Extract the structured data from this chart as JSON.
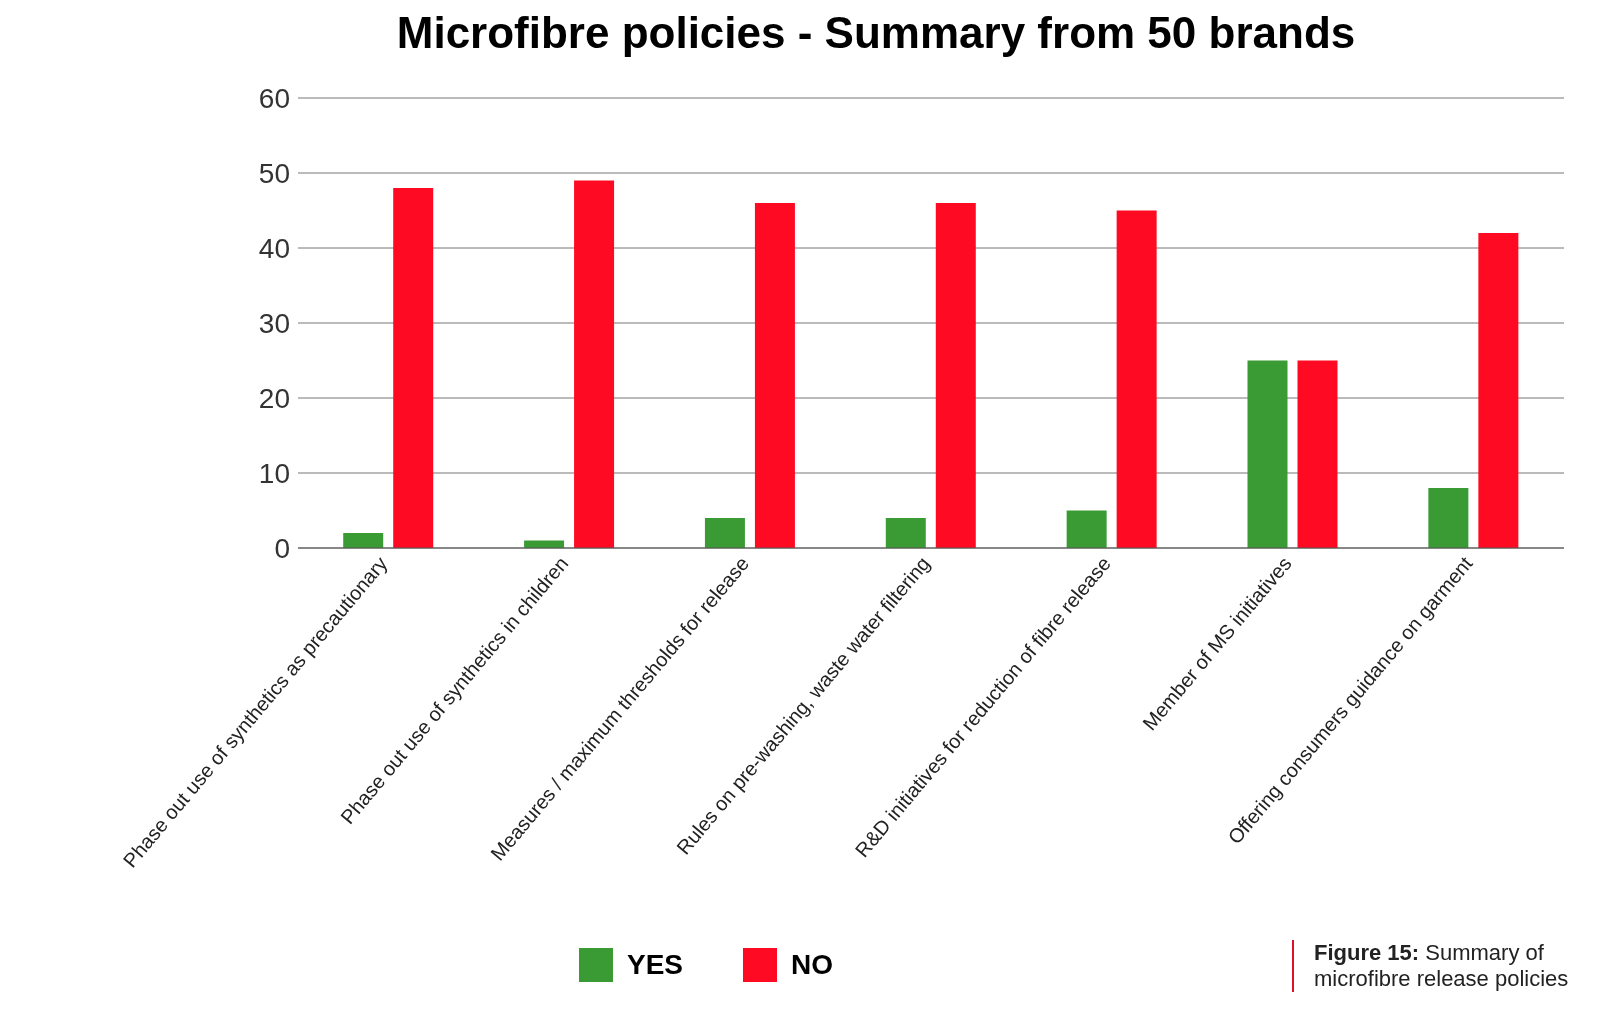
{
  "chart_data": {
    "type": "bar",
    "title": "Microfibre policies - Summary from 50 brands",
    "categories": [
      "Phase out use of synthetics as precautionary",
      "Phase out use of synthetics in children",
      "Measures / maximum thresholds for release",
      "Rules on pre-washing, waste water filtering",
      "R&D initiatives for reduction of fibre release",
      "Member of MS initiatives",
      "Offering consumers guidance on garment"
    ],
    "series": [
      {
        "name": "YES",
        "color": "#3a9b35",
        "values": [
          2,
          1,
          4,
          4,
          5,
          25,
          8
        ]
      },
      {
        "name": "NO",
        "color": "#ff0a23",
        "values": [
          48,
          49,
          46,
          46,
          45,
          25,
          42
        ]
      }
    ],
    "ylim": [
      0,
      60
    ],
    "yticks": [
      0,
      10,
      20,
      30,
      40,
      50,
      60
    ],
    "grid": "y",
    "legend": "bottom",
    "annotations": [
      "Figure 15: Summary of microfibre release policies"
    ]
  }
}
